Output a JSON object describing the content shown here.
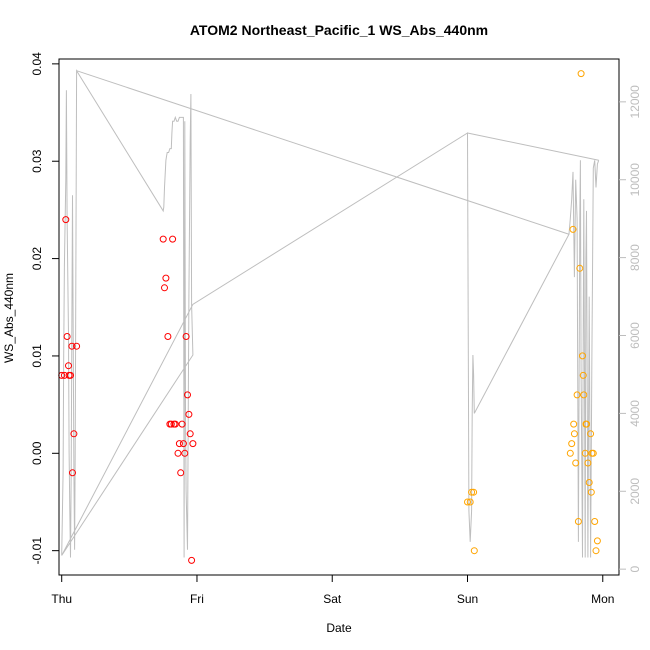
{
  "chart_data": {
    "type": "scatter",
    "title": "ATOM2 Northeast_Pacific_1 WS_Abs_440nm",
    "xlabel": "Date",
    "ylabel": "WS_Abs_440nm",
    "xlim": [
      -0.02,
      4.12
    ],
    "ylim": [
      -0.0125,
      0.0405
    ],
    "x_ticks": [
      {
        "value": 0,
        "label": "Thu"
      },
      {
        "value": 1,
        "label": "Fri"
      },
      {
        "value": 2,
        "label": "Sat"
      },
      {
        "value": 3,
        "label": "Sun"
      },
      {
        "value": 4,
        "label": "Mon"
      }
    ],
    "y_ticks": [
      {
        "value": -0.01,
        "label": "-0.01"
      },
      {
        "value": 0.0,
        "label": "0.00"
      },
      {
        "value": 0.01,
        "label": "0.01"
      },
      {
        "value": 0.02,
        "label": "0.02"
      },
      {
        "value": 0.03,
        "label": "0.03"
      },
      {
        "value": 0.04,
        "label": "0.04"
      }
    ],
    "y2lim": [
      -150,
      13100
    ],
    "y2_ticks": [
      {
        "value": 0,
        "label": "0"
      },
      {
        "value": 2000,
        "label": "2000"
      },
      {
        "value": 4000,
        "label": "4000"
      },
      {
        "value": 6000,
        "label": "6000"
      },
      {
        "value": 8000,
        "label": "8000"
      },
      {
        "value": 10000,
        "label": "10000"
      },
      {
        "value": 12000,
        "label": "12000"
      }
    ],
    "colors": {
      "red": "#ff0000",
      "orange": "#ffa500",
      "line": "#bebebe"
    },
    "series": [
      {
        "color": "red",
        "points": [
          [
            0.0,
            0.008
          ],
          [
            0.02,
            0.008
          ],
          [
            0.03,
            0.024
          ],
          [
            0.04,
            0.012
          ],
          [
            0.05,
            0.009
          ],
          [
            0.055,
            0.008
          ],
          [
            0.065,
            0.008
          ],
          [
            0.075,
            0.011
          ],
          [
            0.08,
            -0.002
          ],
          [
            0.09,
            0.002
          ],
          [
            0.11,
            0.011
          ],
          [
            0.75,
            0.022
          ],
          [
            0.76,
            0.017
          ],
          [
            0.77,
            0.018
          ],
          [
            0.785,
            0.012
          ],
          [
            0.8,
            0.003
          ],
          [
            0.81,
            0.003
          ],
          [
            0.82,
            0.022
          ],
          [
            0.83,
            0.003
          ],
          [
            0.84,
            0.003
          ],
          [
            0.86,
            0.0
          ],
          [
            0.87,
            0.001
          ],
          [
            0.88,
            -0.002
          ],
          [
            0.89,
            0.003
          ],
          [
            0.9,
            0.001
          ],
          [
            0.91,
            0.0
          ],
          [
            0.92,
            0.012
          ],
          [
            0.93,
            0.006
          ],
          [
            0.94,
            0.004
          ],
          [
            0.95,
            0.002
          ],
          [
            0.96,
            -0.011
          ],
          [
            0.97,
            0.001
          ]
        ]
      },
      {
        "color": "orange",
        "points": [
          [
            3.0,
            -0.005
          ],
          [
            3.02,
            -0.005
          ],
          [
            3.03,
            -0.004
          ],
          [
            3.045,
            -0.004
          ],
          [
            3.05,
            -0.01
          ],
          [
            3.76,
            0.0
          ],
          [
            3.77,
            0.001
          ],
          [
            3.78,
            0.023
          ],
          [
            3.785,
            0.003
          ],
          [
            3.79,
            0.002
          ],
          [
            3.8,
            -0.001
          ],
          [
            3.81,
            0.006
          ],
          [
            3.82,
            -0.007
          ],
          [
            3.83,
            0.019
          ],
          [
            3.84,
            0.039
          ],
          [
            3.85,
            0.01
          ],
          [
            3.855,
            0.008
          ],
          [
            3.86,
            0.006
          ],
          [
            3.87,
            0.0
          ],
          [
            3.875,
            0.003
          ],
          [
            3.88,
            0.003
          ],
          [
            3.89,
            -0.001
          ],
          [
            3.9,
            -0.003
          ],
          [
            3.91,
            0.002
          ],
          [
            3.915,
            -0.004
          ],
          [
            3.92,
            0.0
          ],
          [
            3.93,
            0.0
          ],
          [
            3.94,
            -0.007
          ],
          [
            3.95,
            -0.01
          ],
          [
            3.96,
            -0.009
          ]
        ]
      }
    ],
    "secondary_line": {
      "points": [
        [
          0.0,
          350
        ],
        [
          0.01,
          2500
        ],
        [
          0.015,
          5500
        ],
        [
          0.02,
          7800
        ],
        [
          0.03,
          10000
        ],
        [
          0.035,
          12300
        ],
        [
          0.04,
          9000
        ],
        [
          0.05,
          6000
        ],
        [
          0.055,
          3000
        ],
        [
          0.06,
          1500
        ],
        [
          0.065,
          300
        ],
        [
          0.07,
          2500
        ],
        [
          0.075,
          6500
        ],
        [
          0.08,
          9600
        ],
        [
          0.085,
          6000
        ],
        [
          0.09,
          2500
        ],
        [
          0.095,
          500
        ],
        [
          0.1,
          3000
        ],
        [
          0.11,
          12800
        ],
        [
          0.75,
          9200
        ],
        [
          0.755,
          9300
        ],
        [
          0.76,
          9800
        ],
        [
          0.77,
          10500
        ],
        [
          0.775,
          10600
        ],
        [
          0.78,
          10700
        ],
        [
          0.79,
          10700
        ],
        [
          0.8,
          10800
        ],
        [
          0.81,
          10800
        ],
        [
          0.815,
          11200
        ],
        [
          0.82,
          11500
        ],
        [
          0.83,
          11500
        ],
        [
          0.84,
          11600
        ],
        [
          0.85,
          11500
        ],
        [
          0.86,
          11500
        ],
        [
          0.87,
          11600
        ],
        [
          0.88,
          11600
        ],
        [
          0.89,
          11600
        ],
        [
          0.9,
          11600
        ],
        [
          0.905,
          300
        ],
        [
          0.91,
          11500
        ],
        [
          0.915,
          4000
        ],
        [
          0.92,
          2000
        ],
        [
          0.93,
          500
        ],
        [
          0.94,
          7000
        ],
        [
          0.95,
          11000
        ],
        [
          0.955,
          12200
        ],
        [
          0.96,
          6800
        ],
        [
          0.97,
          5500
        ],
        [
          0.0,
          350
        ],
        [
          0.97,
          6800
        ],
        [
          3.0,
          11200
        ],
        [
          3.01,
          1500
        ],
        [
          3.02,
          700
        ],
        [
          3.03,
          1500
        ],
        [
          3.035,
          4000
        ],
        [
          3.04,
          5500
        ],
        [
          3.045,
          5000
        ],
        [
          3.05,
          4000
        ],
        [
          3.75,
          8600
        ],
        [
          3.76,
          9000
        ],
        [
          3.77,
          9500
        ],
        [
          3.78,
          10200
        ],
        [
          3.79,
          7500
        ],
        [
          3.8,
          10000
        ],
        [
          3.81,
          9000
        ],
        [
          3.815,
          5000
        ],
        [
          3.82,
          700
        ],
        [
          3.83,
          9000
        ],
        [
          3.835,
          10500
        ],
        [
          3.84,
          5000
        ],
        [
          3.85,
          300
        ],
        [
          3.855,
          6000
        ],
        [
          3.86,
          9500
        ],
        [
          3.87,
          300
        ],
        [
          3.875,
          8000
        ],
        [
          3.88,
          9200
        ],
        [
          3.89,
          300
        ],
        [
          3.9,
          7000
        ],
        [
          3.91,
          300
        ],
        [
          3.92,
          5500
        ],
        [
          3.93,
          10300
        ],
        [
          3.94,
          10500
        ],
        [
          3.95,
          9800
        ],
        [
          3.96,
          10400
        ],
        [
          3.97,
          10500
        ]
      ],
      "diagonal": [
        [
          0.11,
          12800
        ],
        [
          3.0,
          11200
        ]
      ]
    }
  }
}
